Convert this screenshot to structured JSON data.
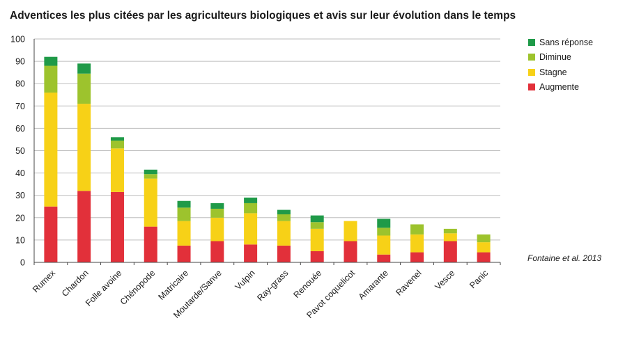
{
  "chart_data": {
    "type": "bar",
    "stacked": true,
    "title": "Adventices les plus citées par les agriculteurs biologiques et avis sur leur évolution dans le temps",
    "source": "Fontaine et al. 2013",
    "ylim": [
      0,
      100
    ],
    "yticks": [
      0,
      10,
      20,
      30,
      40,
      50,
      60,
      70,
      80,
      90,
      100
    ],
    "grid": true,
    "legend_position": "right",
    "categories": [
      "Rumex",
      "Chardon",
      "Folle avoine",
      "Chénopode",
      "Matricaire",
      "Moutarde/Sanve",
      "Vulpin",
      "Ray-grass",
      "Renouée",
      "Pavot coquelicot",
      "Amarante",
      "Ravenel",
      "Vesce",
      "Panic"
    ],
    "series": [
      {
        "name": "Augmente",
        "color": "#e2303a",
        "values": [
          25,
          32,
          31.5,
          16,
          7.5,
          9.5,
          8,
          7.5,
          5,
          9.5,
          3.5,
          4.5,
          9.5,
          4.5
        ]
      },
      {
        "name": "Stagne",
        "color": "#f7d117",
        "values": [
          51,
          39,
          19.5,
          21.5,
          11,
          10.5,
          14,
          11,
          10,
          9,
          8.5,
          8,
          3.5,
          4.5
        ]
      },
      {
        "name": "Diminue",
        "color": "#9dc32d",
        "values": [
          12,
          13.5,
          3.5,
          2,
          6,
          4,
          4.5,
          3,
          3,
          0,
          3.5,
          4.5,
          2,
          3.5
        ]
      },
      {
        "name": "Sans réponse",
        "color": "#1f9a48",
        "values": [
          4,
          4.5,
          1.5,
          2,
          3,
          2.5,
          2.5,
          2,
          3,
          0,
          4,
          0,
          0,
          0
        ]
      }
    ],
    "legend_order": [
      "Sans réponse",
      "Diminue",
      "Stagne",
      "Augmente"
    ]
  }
}
